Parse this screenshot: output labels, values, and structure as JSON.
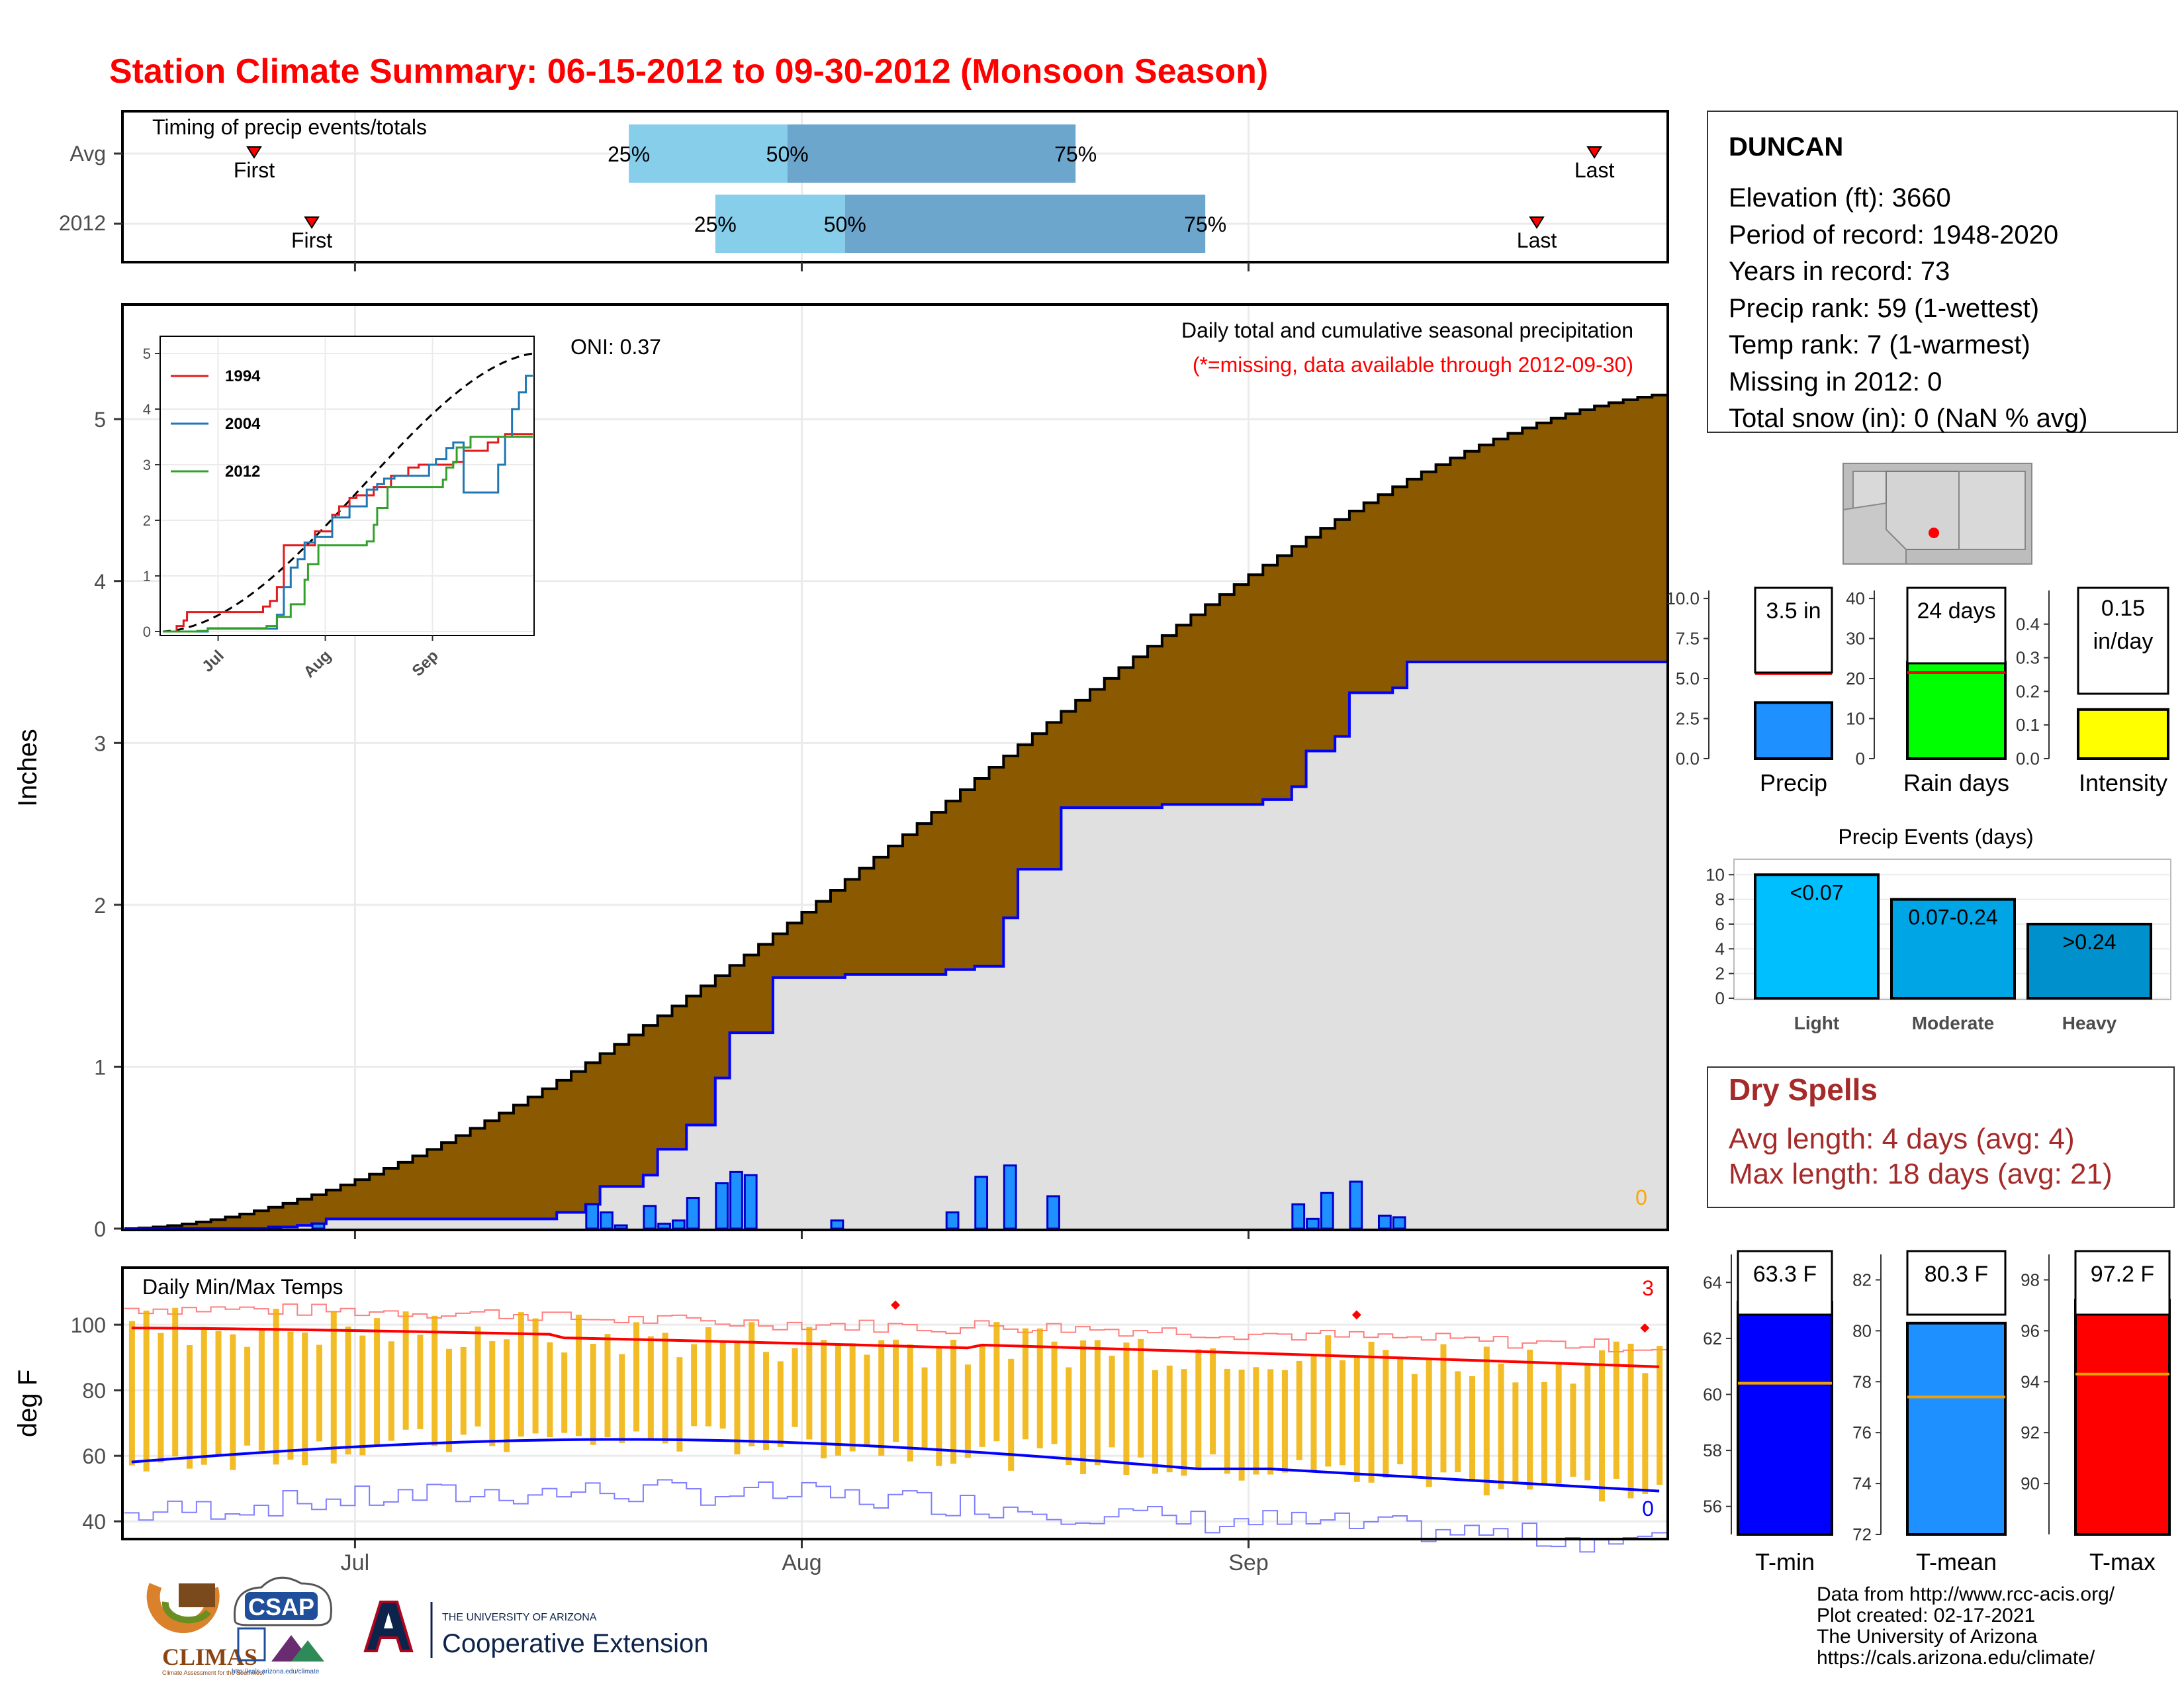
{
  "page": {
    "title": "Station Climate Summary: 06-15-2012 to 09-30-2012 (Monsoon Season)",
    "title_color": "#ff0000"
  },
  "month_labels": [
    "Jul",
    "Aug",
    "Sep"
  ],
  "chart_data": [
    {
      "id": "timing",
      "type": "bar",
      "title": "Timing of precip events/totals",
      "rows": [
        {
          "label": "Avg",
          "first": "06-24",
          "last": "09-25",
          "p25": "07-20",
          "p50": "07-31",
          "p75": "08-20"
        },
        {
          "label": "2012",
          "first": "06-28",
          "last": "09-21",
          "p25": "07-26",
          "p50": "08-04",
          "p75": "08-29"
        }
      ],
      "pct_labels": [
        "25%",
        "50%",
        "75%"
      ],
      "marker_label_first": "First",
      "marker_label_last": "Last"
    },
    {
      "id": "precip",
      "type": "area",
      "title": "Daily total and cumulative seasonal precipitation",
      "note": "(*=missing, data available through 2012-09-30)",
      "oni": "ONI: 0.37",
      "missing_count": "0",
      "ylabel": "Inches",
      "ylim": [
        0,
        5.7
      ],
      "yticks": [
        0,
        1,
        2,
        3,
        4,
        5
      ],
      "avg_cumulative_end": 5.16,
      "cumulative_2012_steps": [
        [
          1,
          0
        ],
        [
          11,
          0.01
        ],
        [
          13,
          0.02
        ],
        [
          14,
          0.03
        ],
        [
          15,
          0.06
        ],
        [
          28,
          0.06
        ],
        [
          31,
          0.1
        ],
        [
          33,
          0.15
        ],
        [
          34,
          0.26
        ],
        [
          37,
          0.33
        ],
        [
          38,
          0.49
        ],
        [
          40,
          0.64
        ],
        [
          42,
          0.93
        ],
        [
          43,
          1.21
        ],
        [
          46,
          1.55
        ],
        [
          50,
          1.55
        ],
        [
          51,
          1.57
        ],
        [
          58,
          1.6
        ],
        [
          60,
          1.62
        ],
        [
          62,
          1.92
        ],
        [
          63,
          2.22
        ],
        [
          66,
          2.6
        ],
        [
          72,
          2.6
        ],
        [
          73,
          2.62
        ],
        [
          80,
          2.65
        ],
        [
          82,
          2.73
        ],
        [
          83,
          2.95
        ],
        [
          85,
          3.04
        ],
        [
          86,
          3.31
        ],
        [
          89,
          3.34
        ],
        [
          90,
          3.5
        ],
        [
          107,
          3.5
        ]
      ],
      "daily_bars": [
        [
          11,
          0.01
        ],
        [
          14,
          0.03
        ],
        [
          33,
          0.15
        ],
        [
          34,
          0.1
        ],
        [
          35,
          0.02
        ],
        [
          37,
          0.14
        ],
        [
          38,
          0.03
        ],
        [
          39,
          0.05
        ],
        [
          40,
          0.19
        ],
        [
          42,
          0.28
        ],
        [
          43,
          0.35
        ],
        [
          44,
          0.33
        ],
        [
          50,
          0.05
        ],
        [
          58,
          0.1
        ],
        [
          60,
          0.32
        ],
        [
          62,
          0.39
        ],
        [
          65,
          0.2
        ],
        [
          82,
          0.15
        ],
        [
          83,
          0.06
        ],
        [
          84,
          0.22
        ],
        [
          86,
          0.29
        ],
        [
          88,
          0.08
        ],
        [
          89,
          0.07
        ]
      ]
    },
    {
      "id": "cumulative_inset",
      "type": "line",
      "yticks": [
        0,
        1,
        2,
        3,
        4,
        5
      ],
      "xticks": [
        "Jul",
        "Aug",
        "Sep"
      ],
      "series": [
        {
          "name": "1994",
          "color": "#e31a1c",
          "steps": [
            [
              1,
              0
            ],
            [
              5,
              0.1
            ],
            [
              7,
              0.2
            ],
            [
              8,
              0.35
            ],
            [
              25,
              0.35
            ],
            [
              30,
              0.45
            ],
            [
              32,
              0.55
            ],
            [
              34,
              0.8
            ],
            [
              36,
              1.55
            ],
            [
              40,
              1.55
            ],
            [
              45,
              1.8
            ],
            [
              50,
              2.1
            ],
            [
              52,
              2.25
            ],
            [
              55,
              2.4
            ],
            [
              57,
              2.45
            ],
            [
              62,
              2.6
            ],
            [
              65,
              2.6
            ],
            [
              67,
              2.8
            ],
            [
              72,
              2.95
            ],
            [
              75,
              3.0
            ],
            [
              85,
              3.05
            ],
            [
              88,
              3.25
            ],
            [
              95,
              3.4
            ],
            [
              98,
              3.5
            ],
            [
              100,
              3.55
            ],
            [
              104,
              3.55
            ],
            [
              108,
              3.55
            ]
          ]
        },
        {
          "name": "2004",
          "color": "#1f78b4",
          "steps": [
            [
              1,
              0
            ],
            [
              14,
              0.05
            ],
            [
              30,
              0.05
            ],
            [
              34,
              0.3
            ],
            [
              36,
              0.8
            ],
            [
              38,
              1.15
            ],
            [
              40,
              1.3
            ],
            [
              42,
              1.6
            ],
            [
              45,
              1.7
            ],
            [
              50,
              2.05
            ],
            [
              55,
              2.25
            ],
            [
              60,
              2.55
            ],
            [
              63,
              2.65
            ],
            [
              65,
              2.75
            ],
            [
              68,
              2.8
            ],
            [
              75,
              2.8
            ],
            [
              78,
              3.0
            ],
            [
              80,
              3.1
            ],
            [
              83,
              3.3
            ],
            [
              85,
              3.4
            ],
            [
              88,
              2.5
            ],
            [
              90,
              2.5
            ],
            [
              95,
              2.5
            ],
            [
              98,
              3.0
            ],
            [
              100,
              3.5
            ],
            [
              102,
              4.0
            ],
            [
              104,
              4.3
            ],
            [
              106,
              4.6
            ],
            [
              108,
              4.6
            ]
          ]
        },
        {
          "name": "2012",
          "color": "#33a02c",
          "steps": [
            [
              1,
              0
            ],
            [
              11,
              0.01
            ],
            [
              14,
              0.06
            ],
            [
              31,
              0.1
            ],
            [
              34,
              0.26
            ],
            [
              38,
              0.49
            ],
            [
              42,
              0.93
            ],
            [
              43,
              1.21
            ],
            [
              46,
              1.55
            ],
            [
              60,
              1.62
            ],
            [
              62,
              1.92
            ],
            [
              63,
              2.22
            ],
            [
              66,
              2.6
            ],
            [
              82,
              2.73
            ],
            [
              83,
              2.95
            ],
            [
              85,
              3.04
            ],
            [
              86,
              3.31
            ],
            [
              90,
              3.5
            ],
            [
              108,
              3.5
            ]
          ]
        }
      ]
    },
    {
      "id": "temps",
      "type": "line",
      "title": "Daily Min/Max Temps",
      "ylabel": "deg F",
      "ylim": [
        35,
        117
      ],
      "yticks": [
        40,
        60,
        80,
        100
      ],
      "record_high_count": "3",
      "record_low_count": "0",
      "record_markers": [
        [
          54,
          106
        ],
        [
          86,
          103
        ],
        [
          106,
          99
        ]
      ]
    },
    {
      "id": "temp_summary",
      "type": "bar",
      "panels": [
        {
          "label": "T-min",
          "value_text": "63.3 F",
          "value": 63.3,
          "avg": 60.4,
          "ylim": [
            55,
            65
          ],
          "yticks": [
            56,
            58,
            60,
            62,
            64
          ],
          "color": "#0000ff"
        },
        {
          "label": "T-mean",
          "value_text": "80.3 F",
          "value": 80.3,
          "avg": 77.4,
          "ylim": [
            72,
            83
          ],
          "yticks": [
            72,
            74,
            76,
            78,
            80,
            82
          ],
          "color": "#1e90ff"
        },
        {
          "label": "T-max",
          "value_text": "97.2 F",
          "value": 97.2,
          "avg": 94.3,
          "ylim": [
            88,
            99
          ],
          "yticks": [
            90,
            92,
            94,
            96,
            98
          ],
          "color": "#ff0000"
        }
      ]
    },
    {
      "id": "precip_summary",
      "type": "bar",
      "panels": [
        {
          "label": "Precip",
          "value_text": "3.5 in",
          "value": 3.5,
          "avg": 5.3,
          "ylim": [
            0,
            10.5
          ],
          "yticks": [
            "0.0",
            "2.5",
            "5.0",
            "7.5",
            "10.0"
          ],
          "color": "#1e90ff"
        },
        {
          "label": "Rain days",
          "value_text": "24 days",
          "value": 24,
          "avg": 21.5,
          "ylim": [
            0,
            42
          ],
          "yticks": [
            "0",
            "10",
            "20",
            "30",
            "40"
          ],
          "color": "#00ff00"
        },
        {
          "label": "Intensity",
          "value_text": "0.15",
          "value_text2": "in/day",
          "value": 0.146,
          "avg": 0.25,
          "ylim": [
            0,
            0.5
          ],
          "yticks": [
            "0.0",
            "0.1",
            "0.2",
            "0.3",
            "0.4"
          ],
          "color": "#ffff00"
        }
      ]
    },
    {
      "id": "precip_events",
      "type": "bar",
      "title": "Precip Events (days)",
      "categories": [
        "Light",
        "Moderate",
        "Heavy"
      ],
      "bar_labels": [
        "<0.07",
        "0.07-0.24",
        ">0.24"
      ],
      "values": [
        10,
        8,
        6
      ],
      "colors": [
        "#00bfff",
        "#00a5e6",
        "#0090cc"
      ],
      "ylim": [
        0,
        10.5
      ],
      "yticks": [
        0,
        2,
        4,
        6,
        8,
        10
      ]
    }
  ],
  "station": {
    "name": "DUNCAN",
    "lines": [
      "Elevation (ft): 3660",
      "Period of record: 1948-2020",
      "Years in record: 73",
      "Precip rank: 59 (1-wettest)",
      "Temp rank: 7 (1-warmest)",
      "Missing in 2012: 0",
      "Total snow (in): 0 (NaN % avg)"
    ]
  },
  "dry_spells": {
    "title": "Dry Spells",
    "avg_line": "Avg length: 4 days (avg: 4)",
    "max_line": "Max length: 18 days (avg: 21)",
    "color": "#a52a2a"
  },
  "credits": [
    "Data from http://www.rcc-acis.org/",
    "Plot created: 02-17-2021",
    "The University of Arizona",
    "https://cals.arizona.edu/climate/"
  ],
  "logos": {
    "climas": "CLIMAS",
    "climas_sub": "Climate Assessment for the Southwest",
    "csap": "CSAP",
    "csap_url": "http://cals.arizona.edu/climate",
    "ua_line1": "THE UNIVERSITY OF ARIZONA",
    "ua_line2": "Cooperative Extension"
  }
}
